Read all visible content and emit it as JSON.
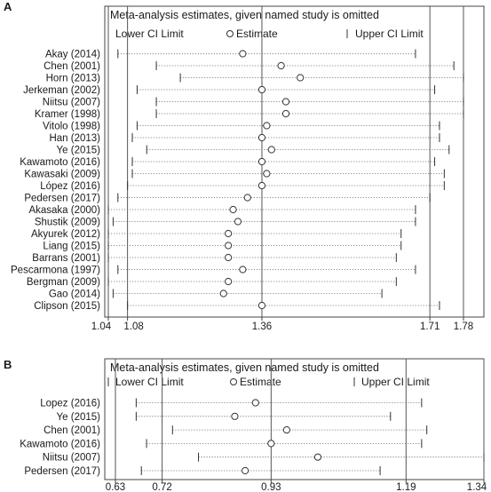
{
  "chart_data": [
    {
      "type": "forest",
      "panel_label": "A",
      "title": "Meta-analysis estimates, given named study is omitted",
      "legend": {
        "lower": "Lower CI Limit",
        "estimate": "Estimate",
        "upper": "Upper CI Limit"
      },
      "xlim": [
        1.04,
        1.78
      ],
      "ticks": [
        "1.04",
        "1.08",
        "1.36",
        "1.71",
        "1.78"
      ],
      "tick_values": [
        1.04,
        1.08,
        1.36,
        1.71,
        1.78
      ],
      "reference_lines": [
        1.04,
        1.08,
        1.36,
        1.71,
        1.78
      ],
      "studies": [
        {
          "name": "Akay (2014)",
          "lower": 1.06,
          "estimate": 1.32,
          "upper": 1.68
        },
        {
          "name": "Chen (2001)",
          "lower": 1.14,
          "estimate": 1.4,
          "upper": 1.76
        },
        {
          "name": "Horn (2013)",
          "lower": 1.19,
          "estimate": 1.44,
          "upper": 1.78
        },
        {
          "name": "Jerkeman (2002)",
          "lower": 1.1,
          "estimate": 1.36,
          "upper": 1.72
        },
        {
          "name": "Niitsu (2007)",
          "lower": 1.14,
          "estimate": 1.41,
          "upper": 1.78
        },
        {
          "name": "Kramer (1998)",
          "lower": 1.14,
          "estimate": 1.41,
          "upper": 1.78
        },
        {
          "name": "Vitolo (1998)",
          "lower": 1.1,
          "estimate": 1.37,
          "upper": 1.73
        },
        {
          "name": "Han (2013)",
          "lower": 1.09,
          "estimate": 1.36,
          "upper": 1.73
        },
        {
          "name": "Ye (2015)",
          "lower": 1.12,
          "estimate": 1.38,
          "upper": 1.75
        },
        {
          "name": "Kawamoto (2016)",
          "lower": 1.09,
          "estimate": 1.36,
          "upper": 1.72
        },
        {
          "name": "Kawasaki (2009)",
          "lower": 1.09,
          "estimate": 1.37,
          "upper": 1.74
        },
        {
          "name": "López (2016)",
          "lower": 1.08,
          "estimate": 1.36,
          "upper": 1.74
        },
        {
          "name": "Pedersen (2017)",
          "lower": 1.06,
          "estimate": 1.33,
          "upper": 1.71
        },
        {
          "name": "Akasaka (2000)",
          "lower": 1.04,
          "estimate": 1.3,
          "upper": 1.68
        },
        {
          "name": "Shustik (2009)",
          "lower": 1.05,
          "estimate": 1.31,
          "upper": 1.68
        },
        {
          "name": "Akyurek (2012)",
          "lower": 1.04,
          "estimate": 1.29,
          "upper": 1.65
        },
        {
          "name": "Liang (2015)",
          "lower": 1.04,
          "estimate": 1.29,
          "upper": 1.65
        },
        {
          "name": "Barrans (2001)",
          "lower": 1.04,
          "estimate": 1.29,
          "upper": 1.64
        },
        {
          "name": "Pescarmona (1997)",
          "lower": 1.06,
          "estimate": 1.32,
          "upper": 1.68
        },
        {
          "name": "Bergman (2009)",
          "lower": 1.04,
          "estimate": 1.29,
          "upper": 1.64
        },
        {
          "name": "Gao (2014)",
          "lower": 1.05,
          "estimate": 1.28,
          "upper": 1.61
        },
        {
          "name": "Clipson (2015)",
          "lower": 1.08,
          "estimate": 1.36,
          "upper": 1.73
        }
      ]
    },
    {
      "type": "forest",
      "panel_label": "B",
      "title": "Meta-analysis estimates, given named study is omitted",
      "legend": {
        "lower": "Lower CI Limit",
        "estimate": "Estimate",
        "upper": "Upper CI Limit"
      },
      "xlim": [
        0.63,
        1.34
      ],
      "ticks": [
        "0.63",
        "0.72",
        "0.93",
        "1.19",
        "1.34"
      ],
      "tick_values": [
        0.63,
        0.72,
        0.93,
        1.19,
        1.34
      ],
      "reference_lines": [
        0.63,
        0.72,
        0.93,
        1.19,
        1.34
      ],
      "studies": [
        {
          "name": "Lopez (2016)",
          "lower": 0.67,
          "estimate": 0.9,
          "upper": 1.22
        },
        {
          "name": "Ye (2015)",
          "lower": 0.67,
          "estimate": 0.86,
          "upper": 1.16
        },
        {
          "name": "Chen (2001)",
          "lower": 0.74,
          "estimate": 0.96,
          "upper": 1.23
        },
        {
          "name": "Kawamoto (2016)",
          "lower": 0.69,
          "estimate": 0.93,
          "upper": 1.22
        },
        {
          "name": "Niitsu (2007)",
          "lower": 0.79,
          "estimate": 1.02,
          "upper": 1.34
        },
        {
          "name": "Pedersen (2017)",
          "lower": 0.68,
          "estimate": 0.88,
          "upper": 1.14
        }
      ]
    }
  ]
}
